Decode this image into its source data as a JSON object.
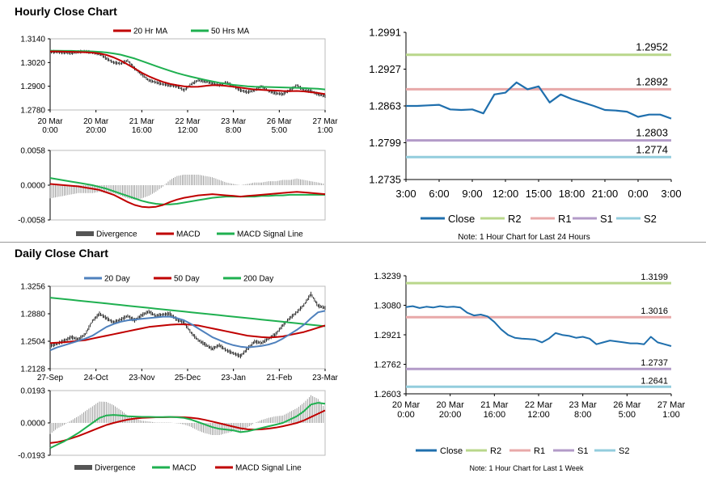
{
  "titles": {
    "hourly": "Hourly Close Chart",
    "daily": "Daily Close Chart"
  },
  "colors": {
    "close": "#1f6fad",
    "r2": "#b9d78b",
    "r1": "#e8a9a9",
    "s1": "#b39bc8",
    "s2": "#93cddd",
    "red": "#c00000",
    "green": "#1fb050",
    "blue": "#4f81bd",
    "price": "#000000",
    "div": "#555555"
  },
  "chart_data": [
    {
      "id": "hourly_price",
      "type": "line",
      "title": "Hourly Close Chart",
      "legend": [
        "20 Hr MA",
        "50 Hrs MA"
      ],
      "yticks": [
        "1.3140",
        "1.3020",
        "1.2900",
        "1.2780"
      ],
      "ylim": [
        1.278,
        1.314
      ],
      "xticks": [
        "20 Mar\n0:00",
        "20 Mar\n20:00",
        "21 Mar\n16:00",
        "22 Mar\n12:00",
        "23 Mar\n8:00",
        "26 Mar\n5:00",
        "27 Mar\n1:00"
      ],
      "price": [
        1.3075,
        1.3073,
        1.3071,
        1.3068,
        1.3074,
        1.3076,
        1.307,
        1.3065,
        1.304,
        1.302,
        1.3015,
        1.303,
        1.299,
        1.296,
        1.293,
        1.292,
        1.291,
        1.2905,
        1.29,
        1.288,
        1.291,
        1.293,
        1.2925,
        1.2915,
        1.2905,
        1.292,
        1.29,
        1.288,
        1.287,
        1.288,
        1.29,
        1.2875,
        1.2865,
        1.286,
        1.288,
        1.2905,
        1.288,
        1.2875,
        1.286,
        1.285
      ],
      "ma20": [
        1.3076,
        1.3076,
        1.3075,
        1.3074,
        1.3073,
        1.3072,
        1.307,
        1.3066,
        1.3058,
        1.3046,
        1.303,
        1.301,
        1.299,
        1.2968,
        1.295,
        1.2935,
        1.2922,
        1.2912,
        1.2905,
        1.29,
        1.2897,
        1.2898,
        1.2902,
        1.2905,
        1.2905,
        1.2902,
        1.2898,
        1.2893,
        1.2888,
        1.2884,
        1.2882,
        1.288,
        1.2878,
        1.2876,
        1.2875,
        1.2876,
        1.2874,
        1.287,
        1.2866,
        1.286
      ],
      "ma50": [
        1.308,
        1.308,
        1.3079,
        1.3079,
        1.3078,
        1.3077,
        1.3076,
        1.3074,
        1.3071,
        1.3066,
        1.306,
        1.305,
        1.304,
        1.3028,
        1.3015,
        1.3002,
        1.299,
        1.2978,
        1.2967,
        1.2957,
        1.2948,
        1.294,
        1.2932,
        1.2925,
        1.2918,
        1.2912,
        1.2907,
        1.2903,
        1.29,
        1.2898,
        1.2897,
        1.2896,
        1.2895,
        1.2894,
        1.2893,
        1.2892,
        1.2891,
        1.2889,
        1.2887,
        1.2884
      ]
    },
    {
      "id": "hourly_macd",
      "type": "line",
      "legend": [
        "Divergence",
        "MACD",
        "MACD Signal Line"
      ],
      "yticks": [
        "0.0058",
        "0.0000",
        "-0.0058"
      ],
      "ylim": [
        -0.0058,
        0.0058
      ],
      "macd": [
        0.0002,
        0.0001,
        0.0,
        -0.0001,
        -0.0002,
        -0.0004,
        -0.0006,
        -0.0008,
        -0.0012,
        -0.0016,
        -0.0022,
        -0.0028,
        -0.0033,
        -0.0036,
        -0.0037,
        -0.0036,
        -0.0033,
        -0.0028,
        -0.0024,
        -0.0021,
        -0.0019,
        -0.0017,
        -0.0016,
        -0.0015,
        -0.0016,
        -0.0017,
        -0.0018,
        -0.0019,
        -0.0018,
        -0.0017,
        -0.0016,
        -0.0015,
        -0.0014,
        -0.0013,
        -0.0012,
        -0.0011,
        -0.0012,
        -0.0013,
        -0.0014,
        -0.0015
      ],
      "signal": [
        0.0012,
        0.001,
        0.0008,
        0.0006,
        0.0004,
        0.0002,
        0.0,
        -0.0003,
        -0.0006,
        -0.001,
        -0.0014,
        -0.0018,
        -0.0022,
        -0.0026,
        -0.0029,
        -0.0031,
        -0.0032,
        -0.0032,
        -0.0031,
        -0.0029,
        -0.0027,
        -0.0025,
        -0.0023,
        -0.0021,
        -0.002,
        -0.0019,
        -0.0019,
        -0.0019,
        -0.0019,
        -0.0019,
        -0.0018,
        -0.0018,
        -0.0017,
        -0.0017,
        -0.0016,
        -0.0016,
        -0.0016,
        -0.0016,
        -0.0016,
        -0.0016
      ]
    },
    {
      "id": "hourly_pivot",
      "type": "line",
      "yticks": [
        "1.2991",
        "1.2927",
        "1.2863",
        "1.2799",
        "1.2735"
      ],
      "ylim": [
        1.2735,
        1.2991
      ],
      "xticks": [
        "3:00",
        "6:00",
        "9:00",
        "12:00",
        "15:00",
        "18:00",
        "21:00",
        "0:00",
        "3:00"
      ],
      "close": [
        1.2863,
        1.2863,
        1.2864,
        1.2865,
        1.2857,
        1.2856,
        1.2857,
        1.285,
        1.2883,
        1.2886,
        1.2904,
        1.2892,
        1.2897,
        1.2869,
        1.2883,
        1.2875,
        1.2869,
        1.2863,
        1.2856,
        1.2855,
        1.2853,
        1.2844,
        1.2848,
        1.2848,
        1.2841
      ],
      "levels": [
        {
          "name": "R2",
          "value": 1.2952,
          "label": "1.2952"
        },
        {
          "name": "R1",
          "value": 1.2892,
          "label": "1.2892"
        },
        {
          "name": "S1",
          "value": 1.2803,
          "label": "1.2803"
        },
        {
          "name": "S2",
          "value": 1.2774,
          "label": "1.2774"
        }
      ],
      "legend": [
        "Close",
        "R2",
        "R1",
        "S1",
        "S2"
      ],
      "note": "Note: 1 Hour Chart for Last 24 Hours"
    },
    {
      "id": "daily_price",
      "type": "line",
      "title": "Daily Close Chart",
      "legend": [
        "20 Day",
        "50 Day",
        "200 Day"
      ],
      "yticks": [
        "1.3256",
        "1.2880",
        "1.2504",
        "1.2128"
      ],
      "ylim": [
        1.2128,
        1.3256
      ],
      "xticks": [
        "27-Sep",
        "24-Oct",
        "23-Nov",
        "25-Dec",
        "23-Jan",
        "21-Feb",
        "23-Mar"
      ],
      "price": [
        1.244,
        1.247,
        1.251,
        1.256,
        1.253,
        1.26,
        1.278,
        1.288,
        1.282,
        1.276,
        1.28,
        1.285,
        1.279,
        1.286,
        1.291,
        1.285,
        1.287,
        1.288,
        1.28,
        1.276,
        1.262,
        1.252,
        1.246,
        1.24,
        1.245,
        1.238,
        1.234,
        1.23,
        1.24,
        1.25,
        1.248,
        1.254,
        1.26,
        1.272,
        1.282,
        1.29,
        1.3,
        1.315,
        1.299,
        1.296
      ],
      "ma20": [
        1.238,
        1.242,
        1.245,
        1.248,
        1.251,
        1.254,
        1.258,
        1.264,
        1.27,
        1.274,
        1.277,
        1.279,
        1.28,
        1.281,
        1.282,
        1.283,
        1.284,
        1.284,
        1.282,
        1.279,
        1.274,
        1.268,
        1.262,
        1.256,
        1.252,
        1.248,
        1.245,
        1.243,
        1.242,
        1.243,
        1.244,
        1.246,
        1.249,
        1.254,
        1.26,
        1.266,
        1.273,
        1.282,
        1.29,
        1.292
      ],
      "ma50": [
        1.248,
        1.2485,
        1.249,
        1.25,
        1.251,
        1.252,
        1.254,
        1.256,
        1.258,
        1.26,
        1.262,
        1.264,
        1.266,
        1.268,
        1.27,
        1.271,
        1.272,
        1.273,
        1.2735,
        1.2735,
        1.273,
        1.272,
        1.27,
        1.268,
        1.266,
        1.264,
        1.262,
        1.26,
        1.258,
        1.257,
        1.256,
        1.2555,
        1.256,
        1.257,
        1.259,
        1.261,
        1.263,
        1.266,
        1.269,
        1.272
      ],
      "ma200": [
        1.31,
        1.309,
        1.308,
        1.307,
        1.306,
        1.305,
        1.304,
        1.303,
        1.302,
        1.301,
        1.3,
        1.299,
        1.298,
        1.297,
        1.296,
        1.295,
        1.294,
        1.293,
        1.292,
        1.291,
        1.29,
        1.289,
        1.288,
        1.287,
        1.286,
        1.285,
        1.284,
        1.283,
        1.282,
        1.281,
        1.28,
        1.279,
        1.278,
        1.277,
        1.276,
        1.275,
        1.274,
        1.273,
        1.272,
        1.271
      ]
    },
    {
      "id": "daily_macd",
      "type": "line",
      "legend": [
        "Divergence",
        "MACD",
        "MACD Signal Line"
      ],
      "yticks": [
        "0.0193",
        "0.0000",
        "-0.0193"
      ],
      "ylim": [
        -0.0193,
        0.0193
      ],
      "macd": [
        -0.015,
        -0.013,
        -0.011,
        -0.0085,
        -0.006,
        -0.003,
        0.0,
        0.003,
        0.0045,
        0.0048,
        0.0045,
        0.004,
        0.0038,
        0.0036,
        0.0036,
        0.0035,
        0.0035,
        0.0036,
        0.0034,
        0.003,
        0.002,
        0.0005,
        -0.001,
        -0.0025,
        -0.0035,
        -0.004,
        -0.0045,
        -0.0055,
        -0.005,
        -0.004,
        -0.003,
        -0.002,
        -0.001,
        0.0,
        0.002,
        0.004,
        0.007,
        0.011,
        0.012,
        0.0115
      ],
      "signal": [
        -0.012,
        -0.0115,
        -0.0105,
        -0.0092,
        -0.0078,
        -0.0062,
        -0.0045,
        -0.0028,
        -0.0012,
        0.0,
        0.001,
        0.002,
        0.0026,
        0.003,
        0.0032,
        0.0034,
        0.0034,
        0.0035,
        0.0035,
        0.0034,
        0.0031,
        0.0026,
        0.0018,
        0.0008,
        -0.0002,
        -0.0012,
        -0.0022,
        -0.0032,
        -0.0038,
        -0.004,
        -0.0038,
        -0.0034,
        -0.0028,
        -0.002,
        -0.001,
        0.0,
        0.0015,
        0.0035,
        0.0055,
        0.0075
      ],
      "legend_order_colors": [
        "div",
        "green",
        "red"
      ]
    },
    {
      "id": "daily_pivot",
      "type": "line",
      "yticks": [
        "1.3239",
        "1.3080",
        "1.2921",
        "1.2762",
        "1.2603"
      ],
      "ylim": [
        1.2603,
        1.3239
      ],
      "xticks": [
        "20 Mar\n0:00",
        "20 Mar\n20:00",
        "21 Mar\n16:00",
        "22 Mar\n12:00",
        "23 Mar\n8:00",
        "26 Mar\n5:00",
        "27 Mar\n1:00"
      ],
      "close": [
        1.307,
        1.3075,
        1.3065,
        1.3072,
        1.3068,
        1.3075,
        1.307,
        1.3072,
        1.3068,
        1.304,
        1.3025,
        1.303,
        1.302,
        1.299,
        1.295,
        1.292,
        1.2905,
        1.29,
        1.2898,
        1.2895,
        1.288,
        1.29,
        1.293,
        1.292,
        1.2915,
        1.2905,
        1.291,
        1.29,
        1.287,
        1.288,
        1.289,
        1.2885,
        1.288,
        1.2875,
        1.2875,
        1.287,
        1.291,
        1.288,
        1.287,
        1.286
      ],
      "levels": [
        {
          "name": "R2",
          "value": 1.3199,
          "label": "1.3199"
        },
        {
          "name": "R1",
          "value": 1.3016,
          "label": "1.3016"
        },
        {
          "name": "S1",
          "value": 1.2737,
          "label": "1.2737"
        },
        {
          "name": "S2",
          "value": 1.2641,
          "label": "1.2641"
        }
      ],
      "legend": [
        "Close",
        "R2",
        "R1",
        "S1",
        "S2"
      ],
      "note": "Note: 1 Hour Chart for Last 1 Week"
    }
  ]
}
